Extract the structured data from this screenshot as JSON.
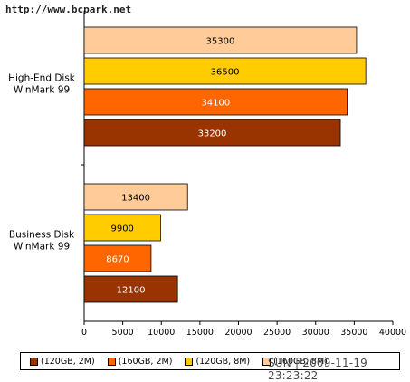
{
  "watermark_top": "http://www.bcpark.net",
  "watermark_bottom": "SUN | 2009-11-19 23:23:22",
  "colors": {
    "peach": "#ffcc99",
    "gold": "#ffcc00",
    "orange": "#ff6600",
    "brown": "#993300",
    "bar_border": "#000000",
    "axis": "#000000"
  },
  "legend": [
    {
      "label": "(120GB, 2M)",
      "color": "#993300"
    },
    {
      "label": "(160GB, 2M)",
      "color": "#ff6600"
    },
    {
      "label": "(120GB, 8M)",
      "color": "#ffcc00"
    },
    {
      "label": "(160GB, 8M)",
      "color": "#ffcc99"
    }
  ],
  "chart_data": {
    "type": "bar",
    "orientation": "horizontal",
    "title": "",
    "xlabel": "",
    "ylabel": "",
    "xlim": [
      0,
      40000
    ],
    "xticks": [
      0,
      5000,
      10000,
      15000,
      20000,
      25000,
      30000,
      35000,
      40000
    ],
    "grid": false,
    "legend_position": "bottom",
    "groups": [
      {
        "category": "High-End Disk WinMark 99",
        "category_lines": [
          "High-End Disk",
          "WinMark 99"
        ],
        "bars": [
          {
            "value": 35300,
            "color": "#ffcc99",
            "label_color": "#000000"
          },
          {
            "value": 36500,
            "color": "#ffcc00",
            "label_color": "#000000"
          },
          {
            "value": 34100,
            "color": "#ff6600",
            "label_color": "#ffffff"
          },
          {
            "value": 33200,
            "color": "#993300",
            "label_color": "#ffffff"
          }
        ]
      },
      {
        "category": "Business Disk WinMark 99",
        "category_lines": [
          "Business Disk",
          "WinMark 99"
        ],
        "bars": [
          {
            "value": 13400,
            "color": "#ffcc99",
            "label_color": "#000000"
          },
          {
            "value": 9900,
            "color": "#ffcc00",
            "label_color": "#000000"
          },
          {
            "value": 8670,
            "color": "#ff6600",
            "label_color": "#ffffff"
          },
          {
            "value": 12100,
            "color": "#993300",
            "label_color": "#ffffff"
          }
        ]
      }
    ]
  }
}
